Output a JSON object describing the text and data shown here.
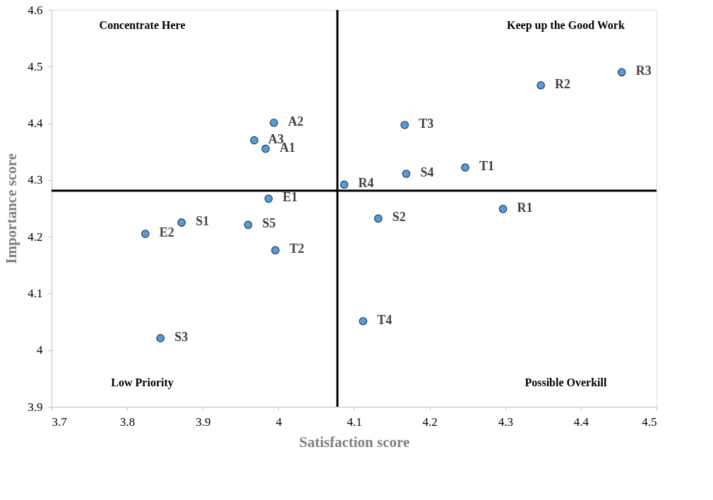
{
  "chart_data": {
    "type": "scatter",
    "xlabel": "Satisfaction score",
    "ylabel": "Importance score",
    "x": [
      4.454,
      4.347,
      3.994,
      4.167,
      3.968,
      3.983,
      4.247,
      4.169,
      4.087,
      3.987,
      4.297,
      4.132,
      3.872,
      3.96,
      3.824,
      3.996,
      4.112,
      3.844
    ],
    "series": [
      {
        "color": "#5b9bd5",
        "values": [
          4.49,
          4.467,
          4.401,
          4.397,
          4.37,
          4.355,
          4.322,
          4.311,
          4.292,
          4.267,
          4.249,
          4.232,
          4.225,
          4.221,
          4.205,
          4.176,
          4.051,
          4.021
        ]
      }
    ],
    "marker": "circle",
    "grid": false,
    "xlim": [
      3.7,
      4.5
    ],
    "xticks": [
      3.7,
      3.8,
      3.9,
      4,
      4.1,
      4.2,
      4.3,
      4.4,
      4.5
    ],
    "ylim": [
      3.9,
      4.6
    ],
    "yticks": [
      3.9,
      4,
      4.1,
      4.2,
      4.3,
      4.4,
      4.5,
      4.6
    ],
    "ref_lines": [
      {
        "axis": "x",
        "value": 4.078,
        "color": "#000000"
      },
      {
        "axis": "y",
        "value": 4.281,
        "color": "#000000"
      }
    ],
    "annotations": [
      {
        "text": "R3",
        "x": 4.454,
        "y": 4.49
      },
      {
        "text": "R2",
        "x": 4.347,
        "y": 4.467
      },
      {
        "text": "A2",
        "x": 3.994,
        "y": 4.401
      },
      {
        "text": "T3",
        "x": 4.167,
        "y": 4.397
      },
      {
        "text": "A3",
        "x": 3.968,
        "y": 4.37
      },
      {
        "text": "A1",
        "x": 3.983,
        "y": 4.355
      },
      {
        "text": "T1",
        "x": 4.247,
        "y": 4.322
      },
      {
        "text": "S4",
        "x": 4.169,
        "y": 4.311
      },
      {
        "text": "R4",
        "x": 4.087,
        "y": 4.292
      },
      {
        "text": "E1",
        "x": 3.987,
        "y": 4.267
      },
      {
        "text": "R1",
        "x": 4.297,
        "y": 4.249
      },
      {
        "text": "S2",
        "x": 4.132,
        "y": 4.232
      },
      {
        "text": "S1",
        "x": 3.872,
        "y": 4.225
      },
      {
        "text": "S5",
        "x": 3.96,
        "y": 4.221
      },
      {
        "text": "E2",
        "x": 3.824,
        "y": 4.205
      },
      {
        "text": "T2",
        "x": 3.996,
        "y": 4.176
      },
      {
        "text": "T4",
        "x": 4.112,
        "y": 4.051
      },
      {
        "text": "S3",
        "x": 3.844,
        "y": 4.021
      },
      "Concentrate Here",
      "Keep up the Good Work",
      "Low Priority",
      "Possible Overkill"
    ]
  }
}
